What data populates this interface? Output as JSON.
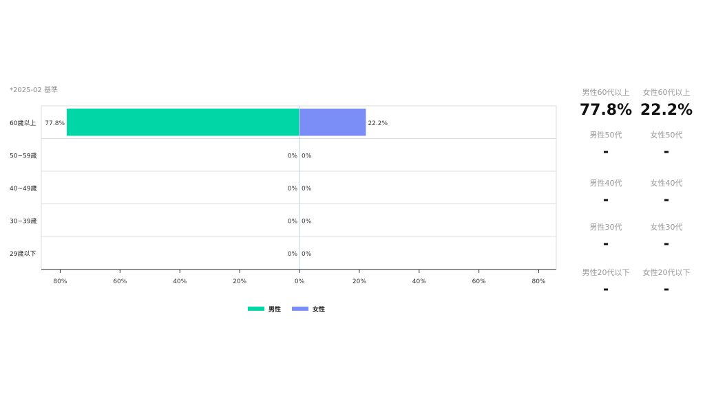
{
  "basis": {
    "date": "*2025-02",
    "suffix": "基準"
  },
  "chart_data": {
    "type": "bar",
    "orientation": "horizontal-diverging",
    "categories": [
      "60歳以上",
      "50~59歳",
      "40~49歳",
      "30~39歳",
      "29歳以下"
    ],
    "series": [
      {
        "name": "男性",
        "values": [
          77.8,
          0,
          0,
          0,
          0
        ],
        "labels": [
          "77.8%",
          "0%",
          "0%",
          "0%",
          "0%"
        ],
        "color": "#00d6a6"
      },
      {
        "name": "女性",
        "values": [
          22.2,
          0,
          0,
          0,
          0
        ],
        "labels": [
          "22.2%",
          "0%",
          "0%",
          "0%",
          "0%"
        ],
        "color": "#7b8ef8"
      }
    ],
    "xlim": [
      -85,
      85
    ],
    "xticks": [
      -80,
      -60,
      -40,
      -20,
      0,
      20,
      40,
      60,
      80
    ],
    "xtick_labels": [
      "80%",
      "60%",
      "40%",
      "20%",
      "0%",
      "20%",
      "40%",
      "60%",
      "80%"
    ],
    "legend_position": "bottom-center",
    "grid": false
  },
  "stats": [
    {
      "label": "男性60代以上",
      "value": "77.8%"
    },
    {
      "label": "女性60代以上",
      "value": "22.2%"
    },
    {
      "label": "男性50代",
      "value": "-"
    },
    {
      "label": "女性50代",
      "value": "-"
    },
    {
      "label": "男性40代",
      "value": "-"
    },
    {
      "label": "女性40代",
      "value": "-"
    },
    {
      "label": "男性30代",
      "value": "-"
    },
    {
      "label": "女性30代",
      "value": "-"
    },
    {
      "label": "男性20代以下",
      "value": "-"
    },
    {
      "label": "女性20代以下",
      "value": "-"
    }
  ]
}
